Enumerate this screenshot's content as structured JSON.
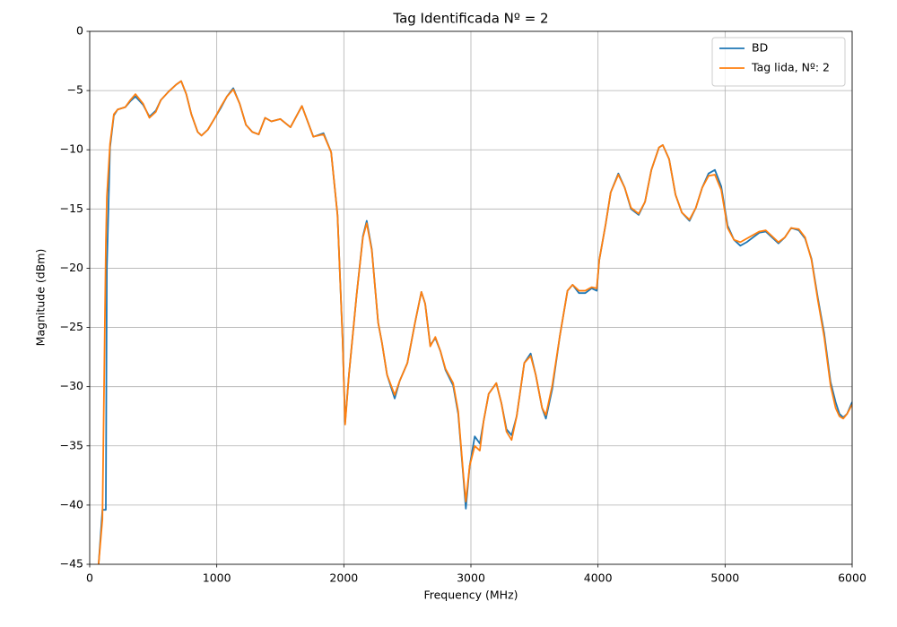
{
  "chart_data": {
    "type": "line",
    "title": "Tag Identificada Nº = 2",
    "xlabel": "Frequency (MHz)",
    "ylabel": "Magnitude (dBm)",
    "x": [
      70,
      100,
      127,
      135,
      160,
      190,
      220,
      280,
      320,
      360,
      420,
      470,
      520,
      560,
      620,
      680,
      720,
      760,
      800,
      850,
      880,
      930,
      980,
      1030,
      1080,
      1130,
      1180,
      1230,
      1280,
      1330,
      1380,
      1430,
      1500,
      1580,
      1670,
      1760,
      1840,
      1900,
      1950,
      1990,
      2010,
      2040,
      2100,
      2150,
      2180,
      2220,
      2270,
      2300,
      2340,
      2400,
      2440,
      2500,
      2560,
      2610,
      2640,
      2680,
      2720,
      2760,
      2800,
      2860,
      2900,
      2940,
      2960,
      2990,
      3030,
      3070,
      3100,
      3140,
      3200,
      3240,
      3280,
      3320,
      3360,
      3420,
      3470,
      3510,
      3560,
      3590,
      3640,
      3700,
      3760,
      3800,
      3850,
      3900,
      3950,
      3990,
      4010,
      4060,
      4100,
      4160,
      4210,
      4260,
      4320,
      4370,
      4420,
      4480,
      4510,
      4560,
      4610,
      4660,
      4720,
      4770,
      4820,
      4870,
      4920,
      4970,
      5020,
      5070,
      5120,
      5170,
      5220,
      5270,
      5320,
      5370,
      5420,
      5470,
      5520,
      5580,
      5630,
      5680,
      5730,
      5780,
      5830,
      5870,
      5900,
      5930,
      5960,
      6000
    ],
    "series": [
      {
        "name": "BD",
        "color": "#1f77b4",
        "values": [
          -45,
          -40.4,
          -40.4,
          -20,
          -9.8,
          -7.1,
          -6.6,
          -6.4,
          -5.9,
          -5.5,
          -6.2,
          -7.2,
          -6.7,
          -5.8,
          -5.1,
          -4.5,
          -4.2,
          -5.3,
          -7.0,
          -8.5,
          -8.8,
          -8.3,
          -7.4,
          -6.5,
          -5.5,
          -4.8,
          -6.1,
          -7.9,
          -8.5,
          -8.7,
          -7.3,
          -7.6,
          -7.4,
          -8.1,
          -6.3,
          -8.9,
          -8.6,
          -10.2,
          -15.5,
          -26,
          -33,
          -29,
          -22.3,
          -17.3,
          -16,
          -18.4,
          -24.6,
          -26.3,
          -29,
          -31,
          -29.5,
          -28,
          -24.6,
          -22,
          -23,
          -26.5,
          -25.9,
          -27,
          -28.6,
          -29.9,
          -32.3,
          -37.6,
          -40.3,
          -36.7,
          -34.2,
          -34.8,
          -32.9,
          -30.6,
          -29.7,
          -31.4,
          -33.6,
          -34.1,
          -32.5,
          -28,
          -27.2,
          -29,
          -31.8,
          -32.7,
          -30.2,
          -25.7,
          -21.9,
          -21.4,
          -22.1,
          -22.1,
          -21.7,
          -21.9,
          -19.3,
          -16.3,
          -13.6,
          -12,
          -13.2,
          -15,
          -15.5,
          -14.4,
          -11.7,
          -9.8,
          -9.6,
          -10.8,
          -13.8,
          -15.3,
          -16,
          -14.9,
          -13.2,
          -12,
          -11.7,
          -13.1,
          -16.4,
          -17.6,
          -18.1,
          -17.8,
          -17.4,
          -17,
          -16.9,
          -17.4,
          -17.9,
          -17.4,
          -16.6,
          -16.8,
          -17.5,
          -19.2,
          -22.5,
          -25.5,
          -29.6,
          -31.3,
          -32.3,
          -32.6,
          -32.3,
          -31.3
        ]
      },
      {
        "name": "Tag lida, Nº: 2",
        "color": "#ff7f0e",
        "values": [
          -45,
          -41.2,
          -18,
          -14,
          -9.5,
          -7,
          -6.6,
          -6.4,
          -5.8,
          -5.3,
          -6.1,
          -7.3,
          -6.8,
          -5.8,
          -5.1,
          -4.5,
          -4.2,
          -5.3,
          -7.0,
          -8.5,
          -8.8,
          -8.3,
          -7.4,
          -6.4,
          -5.5,
          -4.9,
          -6.1,
          -7.9,
          -8.5,
          -8.7,
          -7.3,
          -7.6,
          -7.4,
          -8.1,
          -6.3,
          -8.9,
          -8.7,
          -10.2,
          -15.5,
          -26,
          -33.2,
          -29,
          -22.3,
          -17.4,
          -16.2,
          -18.5,
          -24.6,
          -26.3,
          -29,
          -30.7,
          -29.5,
          -28,
          -24.6,
          -22,
          -23,
          -26.6,
          -25.8,
          -27,
          -28.5,
          -29.7,
          -32.1,
          -37.4,
          -39.7,
          -36.7,
          -35,
          -35.4,
          -32.9,
          -30.6,
          -29.7,
          -31.4,
          -33.8,
          -34.5,
          -32.5,
          -28,
          -27.4,
          -29,
          -31.8,
          -32.4,
          -29.9,
          -25.7,
          -21.9,
          -21.4,
          -21.9,
          -21.9,
          -21.6,
          -21.7,
          -19.3,
          -16.3,
          -13.6,
          -12.1,
          -13.2,
          -14.9,
          -15.4,
          -14.4,
          -11.7,
          -9.8,
          -9.6,
          -10.8,
          -13.8,
          -15.3,
          -15.9,
          -14.9,
          -13.2,
          -12.2,
          -12.1,
          -13.4,
          -16.6,
          -17.6,
          -17.8,
          -17.5,
          -17.2,
          -16.9,
          -16.8,
          -17.3,
          -17.8,
          -17.4,
          -16.6,
          -16.7,
          -17.4,
          -19.3,
          -22.7,
          -25.8,
          -29.9,
          -31.8,
          -32.5,
          -32.7,
          -32.3,
          -31.5
        ]
      }
    ],
    "xlim": [
      0,
      6000
    ],
    "xticks": [
      0,
      1000,
      2000,
      3000,
      4000,
      5000,
      6000
    ],
    "ylim": [
      -45,
      0
    ],
    "yticks": [
      {
        "value": -45,
        "label": "−45"
      },
      {
        "value": -40,
        "label": "−40"
      },
      {
        "value": -35,
        "label": "−35"
      },
      {
        "value": -30,
        "label": "−30"
      },
      {
        "value": -25,
        "label": "−25"
      },
      {
        "value": -20,
        "label": "−20"
      },
      {
        "value": -15,
        "label": "−15"
      },
      {
        "value": -10,
        "label": "−10"
      },
      {
        "value": -5,
        "label": "−5"
      },
      0
    ],
    "grid": true,
    "legend": "upper right"
  }
}
